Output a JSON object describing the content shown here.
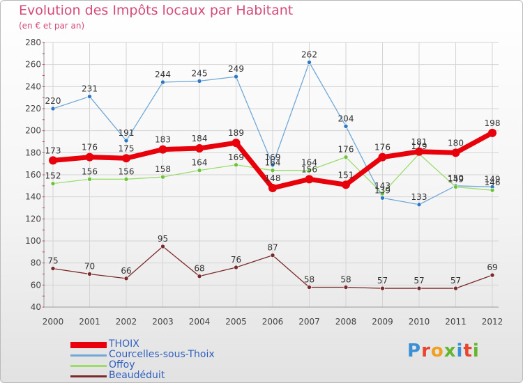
{
  "title": "Evolution des Impôts locaux par Habitant",
  "subtitle": "(en € et par an)",
  "logo": {
    "text": "Proxiti",
    "letter_colors": [
      "#3b8fd4",
      "#e8442e",
      "#f0a020",
      "#62b72e",
      "#3b8fd4",
      "#e8442e",
      "#62b72e"
    ]
  },
  "colors": {
    "axis_text": "#444444",
    "label_text": "#333333",
    "grid": "#d4d4d4",
    "tick_red": "#e0003c"
  },
  "chart_data": {
    "type": "line",
    "title": "Evolution des Impôts locaux par Habitant",
    "subtitle": "(en € et par an)",
    "xlabel": "",
    "ylabel": "",
    "ylim": [
      40,
      280
    ],
    "y_ticks": [
      40,
      60,
      80,
      100,
      120,
      140,
      160,
      180,
      200,
      220,
      240,
      260,
      280
    ],
    "x": [
      "2000",
      "2001",
      "2002",
      "2003",
      "2004",
      "2005",
      "2006",
      "2007",
      "2008",
      "2009",
      "2010",
      "2011",
      "2012"
    ],
    "grid": true,
    "legend_position": "bottom-left",
    "series": [
      {
        "name": "THOIX",
        "color": "#e8000a",
        "marker_color": "#e8000a",
        "thick": true,
        "values": [
          173,
          176,
          175,
          183,
          184,
          189,
          148,
          156,
          151,
          176,
          181,
          180,
          198
        ]
      },
      {
        "name": "Courcelles-sous-Thoix",
        "color": "#6fa8d8",
        "marker_color": "#2f78c4",
        "thick": false,
        "values": [
          220,
          231,
          191,
          244,
          245,
          249,
          169,
          262,
          204,
          139,
          133,
          150,
          149
        ]
      },
      {
        "name": "Offoy",
        "color": "#9bdc6a",
        "marker_color": "#6cc43a",
        "thick": false,
        "values": [
          152,
          156,
          156,
          158,
          164,
          169,
          164,
          164,
          176,
          143,
          179,
          149,
          146
        ]
      },
      {
        "name": "Beaudéduit",
        "color": "#7a2a2a",
        "marker_color": "#7a2a2a",
        "thick": false,
        "values": [
          75,
          70,
          66,
          95,
          68,
          76,
          87,
          58,
          58,
          57,
          57,
          57,
          69
        ]
      }
    ]
  }
}
